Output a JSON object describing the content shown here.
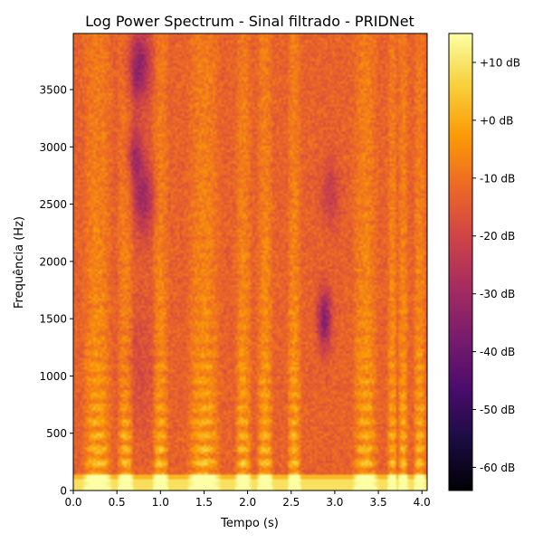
{
  "chart_data": {
    "type": "heatmap",
    "title": "Log Power Spectrum - Sinal filtrado - PRIDNet",
    "xlabel": "Tempo (s)",
    "ylabel": "Frequência (Hz)",
    "xlim": [
      0.0,
      4.06
    ],
    "ylim": [
      0,
      3990
    ],
    "x_ticks": [
      0.0,
      0.5,
      1.0,
      1.5,
      2.0,
      2.5,
      3.0,
      3.5,
      4.0
    ],
    "x_tick_labels": [
      "0.0",
      "0.5",
      "1.0",
      "1.5",
      "2.0",
      "2.5",
      "3.0",
      "3.5",
      "4.0"
    ],
    "y_ticks": [
      0,
      500,
      1000,
      1500,
      2000,
      2500,
      3000,
      3500
    ],
    "y_tick_labels": [
      "0",
      "500",
      "1000",
      "1500",
      "2000",
      "2500",
      "3000",
      "3500"
    ],
    "colormap": "inferno",
    "colorbar": {
      "range": [
        -64,
        15
      ],
      "ticks": [
        10,
        0,
        -10,
        -20,
        -30,
        -40,
        -50,
        -60
      ],
      "tick_labels": [
        "+10 dB",
        "+0 dB",
        "-10 dB",
        "-20 dB",
        "-30 dB",
        "-40 dB",
        "-50 dB",
        "-60 dB"
      ]
    },
    "colorbar_stops": [
      "#000004",
      "#1b0c41",
      "#4a0c6b",
      "#781c6d",
      "#a52c60",
      "#cf4446",
      "#ed6925",
      "#fb9b06",
      "#f7d13d",
      "#fcffa4"
    ],
    "grid": false
  }
}
